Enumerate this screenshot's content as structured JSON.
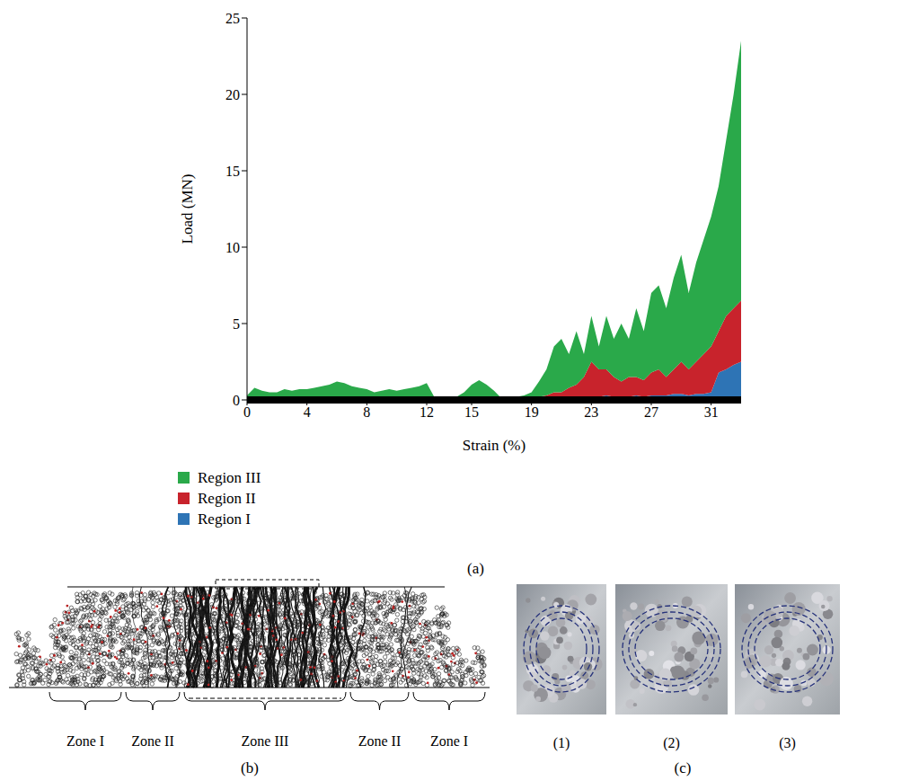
{
  "chart_data": {
    "type": "area",
    "stacked": true,
    "xlabel": "Strain (%)",
    "ylabel": "Load (MN)",
    "xlim": [
      0,
      33
    ],
    "xticks": [
      0,
      4,
      8,
      12,
      15,
      19,
      23,
      27,
      31
    ],
    "ylim": [
      0,
      25
    ],
    "yticks": [
      0,
      5,
      10,
      15,
      20,
      25
    ],
    "grid": false,
    "legend": "bottom",
    "x": [
      0,
      0.5,
      1,
      1.5,
      2,
      2.5,
      3,
      3.5,
      4,
      4.5,
      5,
      5.5,
      6,
      6.5,
      7,
      7.5,
      8,
      8.5,
      9,
      9.5,
      10,
      10.5,
      11,
      11.5,
      12,
      12.5,
      13,
      13.5,
      14,
      14.5,
      15,
      15.5,
      16,
      16.5,
      17,
      17.5,
      18,
      18.5,
      19,
      19.5,
      20,
      20.5,
      21,
      21.5,
      22,
      22.5,
      23,
      23.5,
      24,
      24.5,
      25,
      25.5,
      26,
      26.5,
      27,
      27.5,
      28,
      28.5,
      29,
      29.5,
      30,
      30.5,
      31,
      31.5,
      32,
      32.5,
      33
    ],
    "series": [
      {
        "name": "Region III",
        "color": "#2aa94a",
        "values": [
          0.3,
          0.8,
          0.6,
          0.5,
          0.5,
          0.7,
          0.6,
          0.7,
          0.7,
          0.8,
          0.9,
          1.0,
          1.2,
          1.1,
          0.9,
          0.8,
          0.7,
          0.5,
          0.6,
          0.7,
          0.6,
          0.7,
          0.8,
          0.9,
          1.1,
          0.2,
          0,
          0,
          0.1,
          0.4,
          0.9,
          1.2,
          0.9,
          0.5,
          0,
          0,
          0.1,
          0.2,
          0.4,
          1.0,
          1.7,
          3.0,
          3.5,
          2.2,
          3.5,
          1.5,
          3.0,
          1.5,
          3.5,
          2.5,
          3.8,
          2.5,
          4.5,
          3.2,
          5.2,
          5.5,
          4.5,
          6.0,
          7.0,
          5.0,
          6.5,
          7.5,
          8.5,
          9.5,
          11.5,
          14.0,
          17.0
        ]
      },
      {
        "name": "Region II",
        "color": "#c8232c",
        "values": [
          0,
          0,
          0,
          0,
          0,
          0,
          0,
          0,
          0,
          0,
          0,
          0,
          0,
          0,
          0,
          0,
          0,
          0,
          0,
          0,
          0,
          0,
          0,
          0,
          0,
          0,
          0.1,
          0.1,
          0.1,
          0.1,
          0.1,
          0.1,
          0.1,
          0.1,
          0.1,
          0.1,
          0.1,
          0.1,
          0.1,
          0.2,
          0.3,
          0.5,
          0.5,
          0.8,
          0.9,
          1.4,
          2.3,
          1.8,
          1.7,
          1.3,
          1.0,
          1.3,
          1.2,
          1.1,
          1.5,
          1.7,
          1.2,
          1.6,
          2.1,
          1.7,
          2.1,
          2.6,
          3.0,
          2.7,
          3.5,
          3.7,
          4.0
        ]
      },
      {
        "name": "Region I",
        "color": "#2e74b5",
        "values": [
          0,
          0,
          0,
          0,
          0,
          0,
          0,
          0,
          0,
          0,
          0,
          0,
          0,
          0,
          0,
          0,
          0,
          0,
          0,
          0,
          0,
          0,
          0,
          0,
          0,
          0,
          0,
          0,
          0,
          0,
          0,
          0,
          0,
          0,
          0,
          0,
          0,
          0,
          0,
          0,
          0,
          0,
          0,
          0,
          0.1,
          0.1,
          0.2,
          0.2,
          0.3,
          0.2,
          0.2,
          0.2,
          0.3,
          0.2,
          0.3,
          0.3,
          0.3,
          0.4,
          0.4,
          0.3,
          0.4,
          0.4,
          0.5,
          1.8,
          2.0,
          2.3,
          2.5
        ]
      }
    ]
  },
  "chart_label": "(a)",
  "diagram": {
    "label": "(b)",
    "zones": [
      "Zone I",
      "Zone II",
      "Zone III",
      "Zone II",
      "Zone I"
    ]
  },
  "photos": {
    "label": "(c)",
    "items": [
      "(1)",
      "(2)",
      "(3)"
    ]
  }
}
